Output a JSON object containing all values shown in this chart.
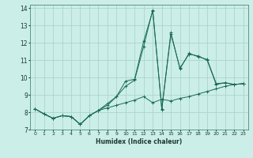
{
  "xlabel": "Humidex (Indice chaleur)",
  "background_color": "#cceee8",
  "grid_color": "#aad4ce",
  "line_color": "#1a6b5a",
  "xlim": [
    -0.5,
    23.5
  ],
  "ylim": [
    7,
    14.2
  ],
  "yticks": [
    7,
    8,
    9,
    10,
    11,
    12,
    13,
    14
  ],
  "xticks": [
    0,
    1,
    2,
    3,
    4,
    5,
    6,
    7,
    8,
    9,
    10,
    11,
    12,
    13,
    14,
    15,
    16,
    17,
    18,
    19,
    20,
    21,
    22,
    23
  ],
  "series": [
    {
      "x": [
        0,
        1,
        2,
        3,
        4,
        5,
        6,
        7,
        8,
        9,
        10,
        11,
        12,
        13,
        14,
        15,
        16,
        17,
        18,
        19,
        20,
        21,
        22,
        23
      ],
      "y": [
        8.2,
        7.9,
        7.65,
        7.8,
        7.75,
        7.3,
        7.8,
        8.1,
        8.25,
        8.4,
        8.55,
        8.7,
        8.9,
        8.55,
        8.75,
        8.65,
        8.8,
        8.9,
        9.05,
        9.2,
        9.35,
        9.5,
        9.6,
        9.65
      ]
    },
    {
      "x": [
        0,
        1,
        2,
        3,
        4,
        5,
        6,
        7,
        8,
        9,
        10,
        11,
        12,
        13,
        14,
        15,
        16,
        17,
        18,
        19,
        20,
        21,
        22,
        23
      ],
      "y": [
        8.2,
        7.9,
        7.65,
        7.8,
        7.75,
        7.3,
        7.8,
        8.1,
        8.5,
        8.9,
        9.5,
        9.85,
        11.8,
        13.9,
        8.15,
        12.5,
        10.55,
        11.35,
        11.25,
        11.0,
        9.6,
        9.7,
        9.6,
        9.65
      ]
    },
    {
      "x": [
        0,
        1,
        2,
        3,
        4,
        5,
        6,
        7,
        8,
        9,
        10,
        11,
        12,
        13,
        14,
        15,
        16,
        17,
        18,
        19,
        20,
        21,
        22,
        23
      ],
      "y": [
        8.2,
        7.9,
        7.65,
        7.8,
        7.75,
        7.3,
        7.8,
        8.1,
        8.4,
        8.9,
        9.8,
        9.9,
        12.1,
        13.85,
        8.2,
        12.6,
        10.5,
        11.4,
        11.2,
        11.05,
        9.65,
        9.7,
        9.6,
        9.65
      ]
    }
  ]
}
